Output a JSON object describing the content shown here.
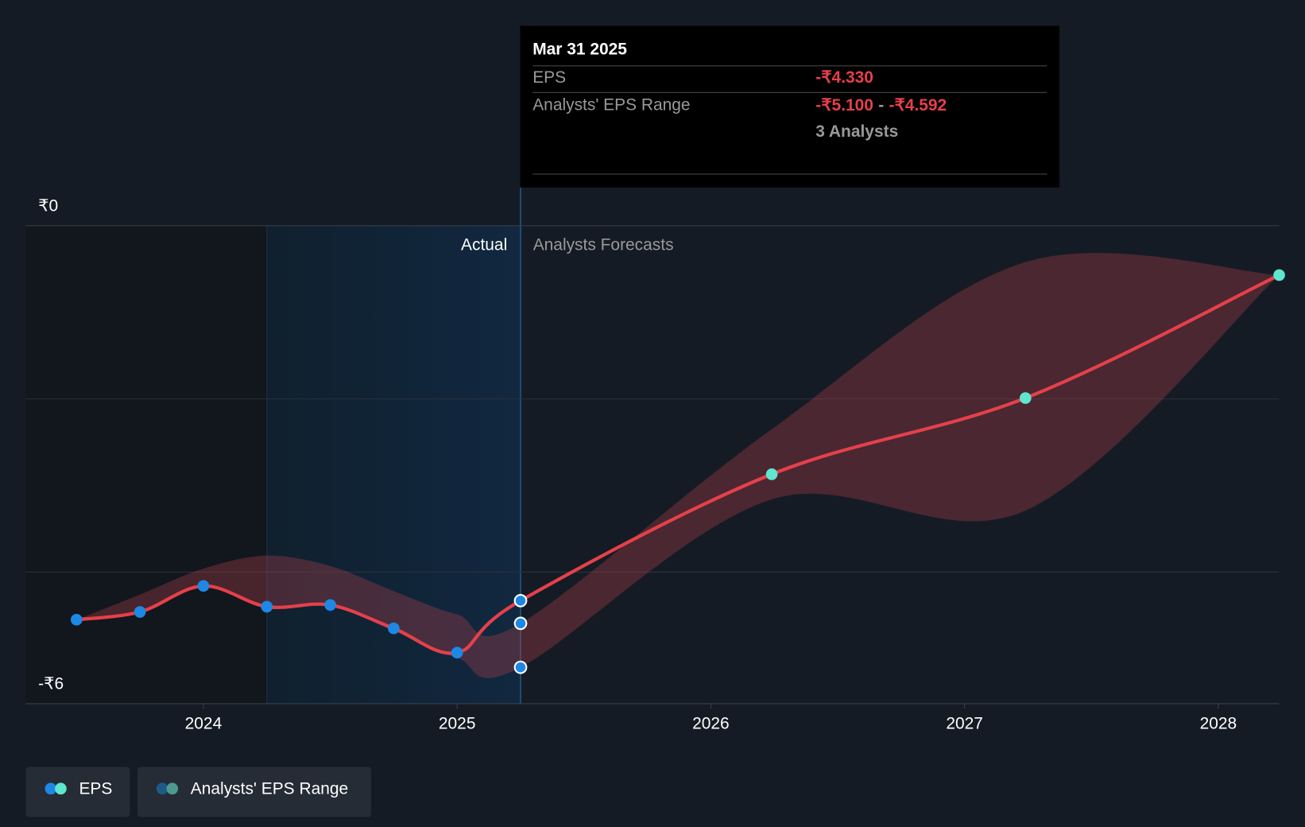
{
  "chart_data": {
    "type": "line",
    "x": [
      2023.5,
      2023.75,
      2024,
      2024.25,
      2024.5,
      2024.75,
      2025,
      2025.25,
      2026.24,
      2027.24,
      2028.24
    ],
    "series": [
      {
        "name": "EPS",
        "color": "#e5404a",
        "values": [
          -4.55,
          -4.46,
          -4.16,
          -4.4,
          -4.38,
          -4.65,
          -4.93,
          -4.33,
          -2.87,
          -1.99,
          -0.57
        ]
      },
      {
        "name": "Analysts' EPS Range",
        "color": "#b0404a",
        "low": [
          -4.55,
          -4.46,
          -4.16,
          -4.4,
          -4.38,
          -4.68,
          -4.99,
          -5.1,
          -3.16,
          -3.29,
          -0.57
        ],
        "high": [
          -4.55,
          -4.26,
          -3.96,
          -3.81,
          -3.93,
          -4.22,
          -4.49,
          -4.592,
          -2.35,
          -0.42,
          -0.57
        ]
      }
    ],
    "xlim": [
      2023.3,
      2028.24
    ],
    "xticks": [
      2024,
      2025,
      2026,
      2027,
      2028
    ],
    "ylim": [
      -5.52,
      0
    ],
    "yticks": [
      {
        "value": 0,
        "label": "₹0"
      },
      {
        "value": -5.52,
        "label": "-₹6"
      }
    ],
    "ygrid": [
      -2,
      -4
    ],
    "region_labels": [
      "Actual",
      "Analysts Forecasts"
    ],
    "tooltip": {
      "date": "Mar 31 2025",
      "eps_label": "EPS",
      "eps": "-₹4.330",
      "range_label": "Analysts' EPS Range",
      "range_low": "-₹5.100",
      "separator": "-",
      "range_high": "-₹4.592",
      "analysts": "3 Analysts"
    }
  }
}
